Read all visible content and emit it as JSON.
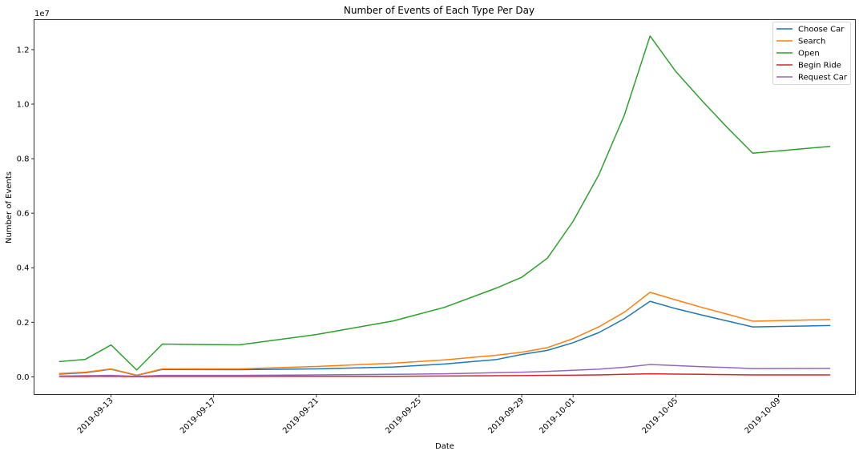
{
  "chart_data": {
    "type": "line",
    "title": "Number of Events of Each Type Per Day",
    "xlabel": "Date",
    "ylabel": "Number of Events",
    "y_offset_label": "1e7",
    "xlim": [
      "2019-09-10",
      "2019-10-12"
    ],
    "ylim": [
      -650000,
      13100000
    ],
    "x_ticks": [
      {
        "date": "2019-09-13",
        "label": "2019-09-13"
      },
      {
        "date": "2019-09-17",
        "label": "2019-09-17"
      },
      {
        "date": "2019-09-21",
        "label": "2019-09-21"
      },
      {
        "date": "2019-09-25",
        "label": "2019-09-25"
      },
      {
        "date": "2019-09-29",
        "label": "2019-09-29"
      },
      {
        "date": "2019-10-01",
        "label": "2019-10-01"
      },
      {
        "date": "2019-10-05",
        "label": "2019-10-05"
      },
      {
        "date": "2019-10-09",
        "label": "2019-10-09"
      }
    ],
    "y_ticks": [
      {
        "value": 0,
        "label": "0.0"
      },
      {
        "value": 2000000,
        "label": "0.2"
      },
      {
        "value": 4000000,
        "label": "0.4"
      },
      {
        "value": 6000000,
        "label": "0.6"
      },
      {
        "value": 8000000,
        "label": "0.8"
      },
      {
        "value": 10000000,
        "label": "1.0"
      },
      {
        "value": 12000000,
        "label": "1.2"
      }
    ],
    "grid": false,
    "legend_position": "top-right",
    "x": [
      "2019-09-11",
      "2019-09-12",
      "2019-09-13",
      "2019-09-14",
      "2019-09-15",
      "2019-09-18",
      "2019-09-21",
      "2019-09-24",
      "2019-09-26",
      "2019-09-28",
      "2019-09-29",
      "2019-09-30",
      "2019-10-01",
      "2019-10-02",
      "2019-10-03",
      "2019-10-04",
      "2019-10-05",
      "2019-10-06",
      "2019-10-07",
      "2019-10-08",
      "2019-10-11"
    ],
    "series": [
      {
        "name": "Choose Car",
        "color": "#1f77b4",
        "values": [
          100000,
          150000,
          280000,
          50000,
          270000,
          260000,
          290000,
          360000,
          470000,
          630000,
          820000,
          970000,
          1250000,
          1620000,
          2130000,
          2770000,
          2500000,
          2270000,
          2050000,
          1830000,
          1880000
        ]
      },
      {
        "name": "Search",
        "color": "#ff7f0e",
        "values": [
          120000,
          170000,
          290000,
          60000,
          290000,
          290000,
          380000,
          500000,
          620000,
          790000,
          900000,
          1070000,
          1400000,
          1830000,
          2370000,
          3100000,
          2820000,
          2550000,
          2300000,
          2040000,
          2100000
        ]
      },
      {
        "name": "Open",
        "color": "#2ca02c",
        "values": [
          560000,
          640000,
          1170000,
          250000,
          1200000,
          1170000,
          1550000,
          2050000,
          2550000,
          3250000,
          3650000,
          4350000,
          5700000,
          7400000,
          9600000,
          12500000,
          11200000,
          10150000,
          9150000,
          8200000,
          8450000
        ]
      },
      {
        "name": "Begin Ride",
        "color": "#d62728",
        "values": [
          10000,
          10000,
          20000,
          5000,
          15000,
          15000,
          20000,
          20000,
          30000,
          40000,
          45000,
          55000,
          60000,
          70000,
          90000,
          110000,
          100000,
          90000,
          80000,
          70000,
          70000
        ]
      },
      {
        "name": "Request Car",
        "color": "#9467bd",
        "values": [
          30000,
          40000,
          50000,
          20000,
          50000,
          50000,
          70000,
          90000,
          110000,
          150000,
          170000,
          200000,
          240000,
          280000,
          350000,
          450000,
          410000,
          370000,
          340000,
          300000,
          310000
        ]
      }
    ]
  }
}
